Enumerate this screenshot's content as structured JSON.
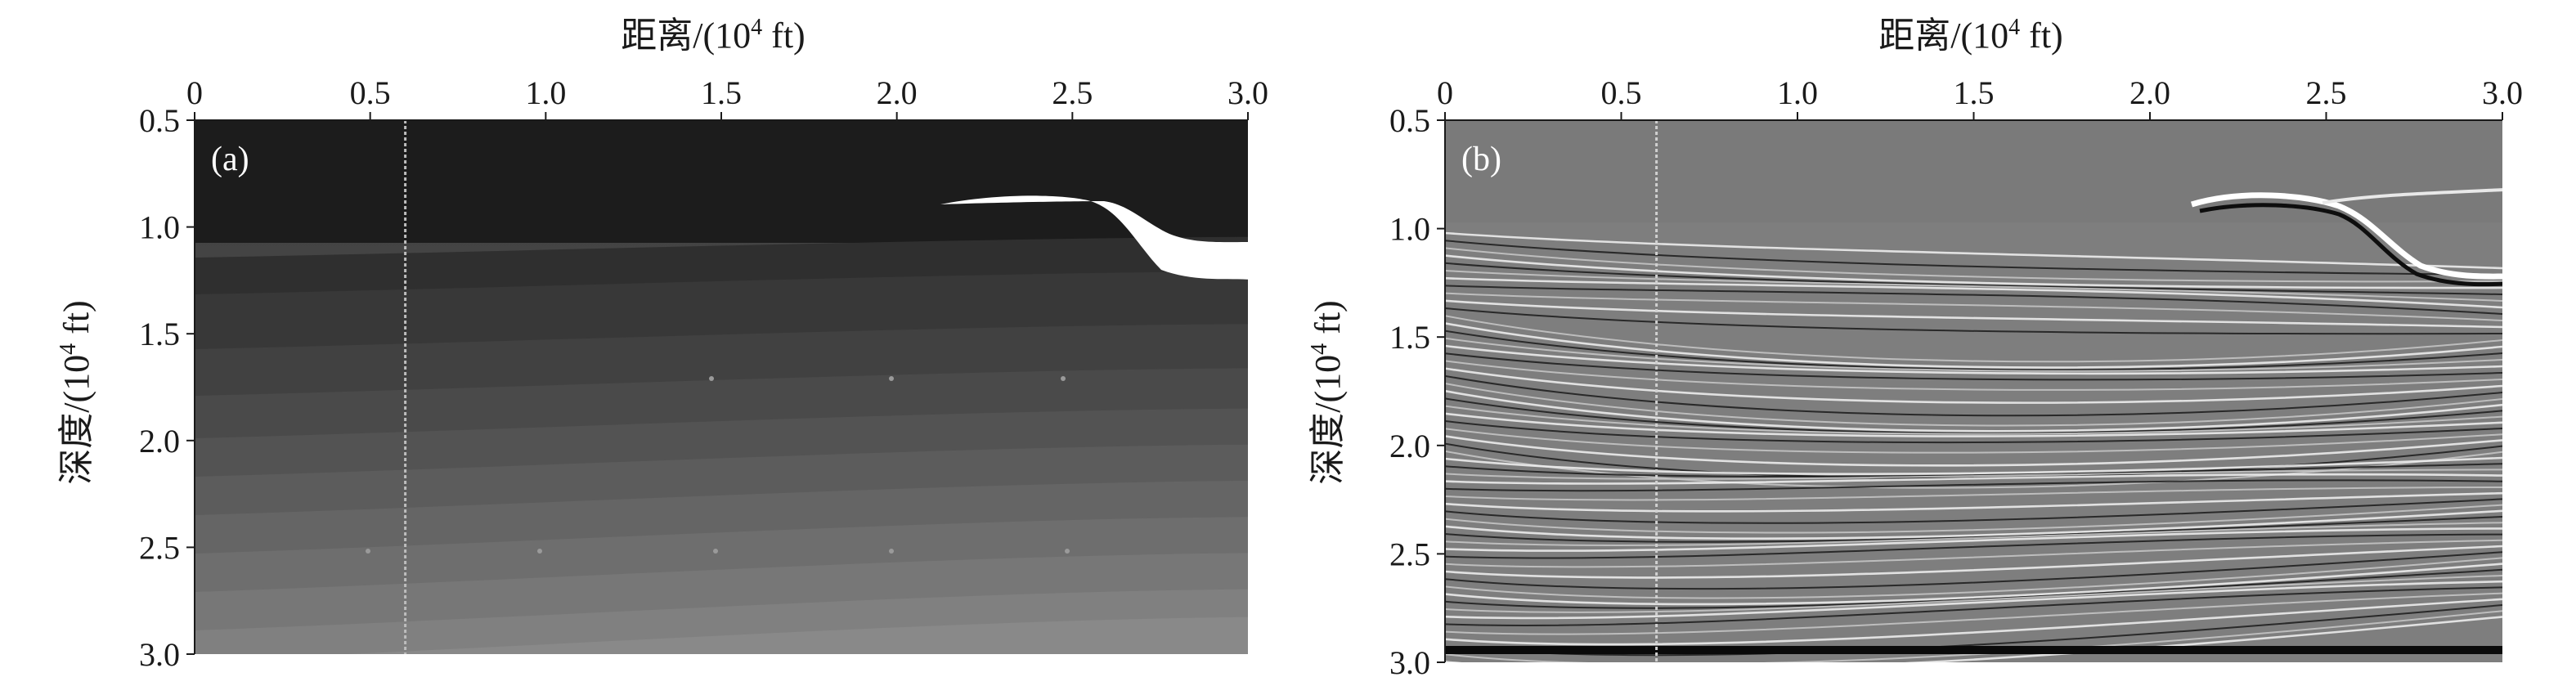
{
  "figure": {
    "panels": [
      {
        "tag": "(a)",
        "kind": "velocity-model",
        "xlabel_main": "距离/(10",
        "xlabel_sup": "4",
        "xlabel_tail": " ft)",
        "ylabel_main": "深度/(10",
        "ylabel_sup": "4",
        "ylabel_tail": " ft)",
        "xticks": [
          "0",
          "0.5",
          "1.0",
          "1.5",
          "2.0",
          "2.5",
          "3.0"
        ],
        "yticks": [
          "0.5",
          "1.0",
          "1.5",
          "2.0",
          "2.5",
          "3.0"
        ],
        "xlim": [
          0,
          3.0
        ],
        "ylim": [
          0.5,
          3.0
        ],
        "marker_x": 0.6
      },
      {
        "tag": "(b)",
        "kind": "seismic-image",
        "xlabel_main": "距离/(10",
        "xlabel_sup": "4",
        "xlabel_tail": " ft)",
        "ylabel_main": "深度/(10",
        "ylabel_sup": "4",
        "ylabel_tail": " ft)",
        "xticks": [
          "0",
          "0.5",
          "1.0",
          "1.5",
          "2.0",
          "2.5",
          "3.0"
        ],
        "yticks": [
          "0.5",
          "1.0",
          "1.5",
          "2.0",
          "2.5",
          "3.0"
        ],
        "xlim": [
          0,
          3.0
        ],
        "ylim": [
          0.5,
          3.0
        ],
        "marker_x": 0.6
      }
    ]
  },
  "chart_data": [
    {
      "type": "heatmap",
      "title": "",
      "xlabel": "距离/(10⁴ ft)",
      "ylabel": "深度/(10⁴ ft)",
      "xlim": [
        0,
        3.0
      ],
      "ylim": [
        0.5,
        3.0
      ],
      "y_inverted": true,
      "grid": false,
      "annotations": [
        "(a)"
      ],
      "vertical_marker_x": 0.6
    },
    {
      "type": "heatmap",
      "title": "",
      "xlabel": "距离/(10⁴ ft)",
      "ylabel": "深度/(10⁴ ft)",
      "xlim": [
        0,
        3.0
      ],
      "ylim": [
        0.5,
        3.0
      ],
      "y_inverted": true,
      "grid": false,
      "annotations": [
        "(b)"
      ],
      "vertical_marker_x": 0.6
    }
  ]
}
